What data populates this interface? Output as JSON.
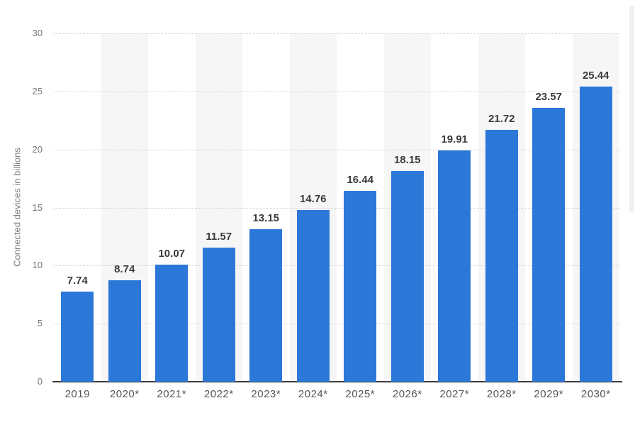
{
  "chart_data": {
    "type": "bar",
    "title": "",
    "categories": [
      "2019",
      "2020*",
      "2021*",
      "2022*",
      "2023*",
      "2024*",
      "2025*",
      "2026*",
      "2027*",
      "2028*",
      "2029*",
      "2030*"
    ],
    "values": [
      7.74,
      8.74,
      10.07,
      11.57,
      13.15,
      14.76,
      16.44,
      18.15,
      19.91,
      21.72,
      23.57,
      25.44
    ],
    "value_labels": [
      "7.74",
      "8.74",
      "10.07",
      "11.57",
      "13.15",
      "14.76",
      "16.44",
      "18.15",
      "19.91",
      "21.72",
      "23.57",
      "25.44"
    ],
    "xlabel": "",
    "ylabel": "Connected devices in billions",
    "ylim": [
      0,
      30
    ],
    "yticks": [
      0,
      5,
      10,
      15,
      20,
      25,
      30
    ],
    "ytick_labels": [
      "0",
      "5",
      "10",
      "15",
      "20",
      "25",
      "30"
    ],
    "legend": "none",
    "grid": "horizontal-dotted",
    "plot_background": "alternating column stripes on even-year columns"
  },
  "colors": {
    "bar": "#2c78d8",
    "value_label": "#3b3b3b",
    "axis_line": "#3d3d3d",
    "gridline": "#d0d0d0",
    "y_tick_label": "#767676",
    "x_tick_label": "#555555",
    "y_axis_title": "#7c7c7c",
    "column_stripe": "#f6f6f6",
    "background": "#ffffff",
    "scrollbar_thumb": "#eef0f3"
  }
}
